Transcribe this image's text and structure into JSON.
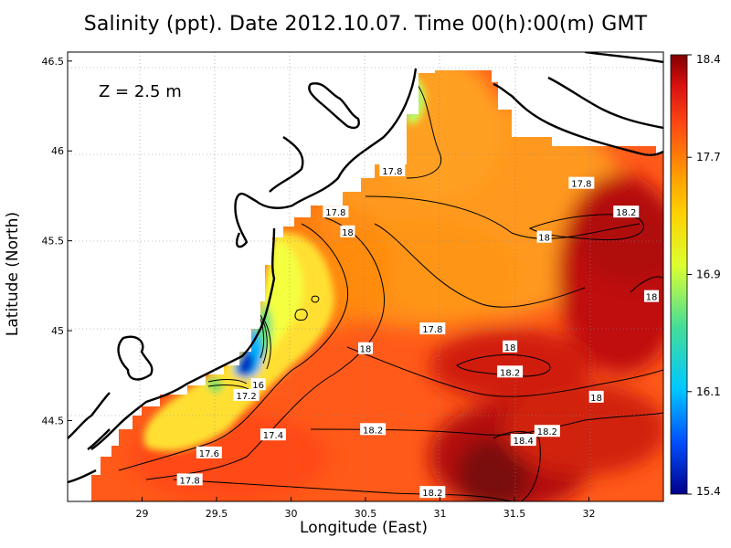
{
  "title": "Salinity (ppt). Date 2012.10.07. Time 00(h):00(m) GMT",
  "depth_label": "Z = 2.5 m",
  "colors": {
    "high": "#8b0000",
    "mid_high": "#e8321a",
    "mid": "#ffa500",
    "mid_low": "#ffff33",
    "low_mid": "#55dd88",
    "low": "#00b0ff",
    "lowest": "#0000a0",
    "land": "#ffffff",
    "coast": "#000000"
  },
  "chart_data": {
    "type": "heatmap",
    "title": "Salinity (ppt). Date 2012.10.07. Time 00(h):00(m) GMT",
    "xlabel": "Longitude (East)",
    "ylabel": "Latitude (North)",
    "xlim": [
      28.5,
      32.5
    ],
    "ylim": [
      44.05,
      46.55
    ],
    "x_ticks": [
      "29",
      "29.5",
      "30",
      "30.5",
      "31",
      "31.5",
      "32"
    ],
    "y_ticks": [
      "44.5",
      "45",
      "45.5",
      "46",
      "46.5"
    ],
    "grid": true,
    "colorbar": {
      "min": 15.4,
      "max": 18.4,
      "ticks": [
        "15.4",
        "16.1",
        "16.9",
        "17.7",
        "18.4"
      ]
    },
    "contour_labels": [
      {
        "text": "17.8",
        "lon": 30.68,
        "lat": 45.89
      },
      {
        "text": "17.8",
        "lon": 31.95,
        "lat": 45.82
      },
      {
        "text": "17.8",
        "lon": 30.3,
        "lat": 45.66
      },
      {
        "text": "18",
        "lon": 30.38,
        "lat": 45.55
      },
      {
        "text": "18.2",
        "lon": 32.25,
        "lat": 45.66
      },
      {
        "text": "18",
        "lon": 31.7,
        "lat": 45.52
      },
      {
        "text": "18",
        "lon": 32.42,
        "lat": 45.19
      },
      {
        "text": "17.8",
        "lon": 30.95,
        "lat": 45.01
      },
      {
        "text": "18",
        "lon": 30.5,
        "lat": 44.9
      },
      {
        "text": "18",
        "lon": 31.47,
        "lat": 44.91
      },
      {
        "text": "18.2",
        "lon": 31.47,
        "lat": 44.77
      },
      {
        "text": "18",
        "lon": 32.05,
        "lat": 44.63
      },
      {
        "text": "16",
        "lon": 29.78,
        "lat": 44.7
      },
      {
        "text": "17.2",
        "lon": 29.7,
        "lat": 44.64
      },
      {
        "text": "17.4",
        "lon": 29.88,
        "lat": 44.42
      },
      {
        "text": "18.2",
        "lon": 30.55,
        "lat": 44.45
      },
      {
        "text": "18.2",
        "lon": 31.72,
        "lat": 44.44
      },
      {
        "text": "18.4",
        "lon": 31.56,
        "lat": 44.39
      },
      {
        "text": "17.6",
        "lon": 29.45,
        "lat": 44.32
      },
      {
        "text": "17.8",
        "lon": 29.32,
        "lat": 44.17
      },
      {
        "text": "18.2",
        "lon": 30.95,
        "lat": 44.1
      }
    ]
  }
}
